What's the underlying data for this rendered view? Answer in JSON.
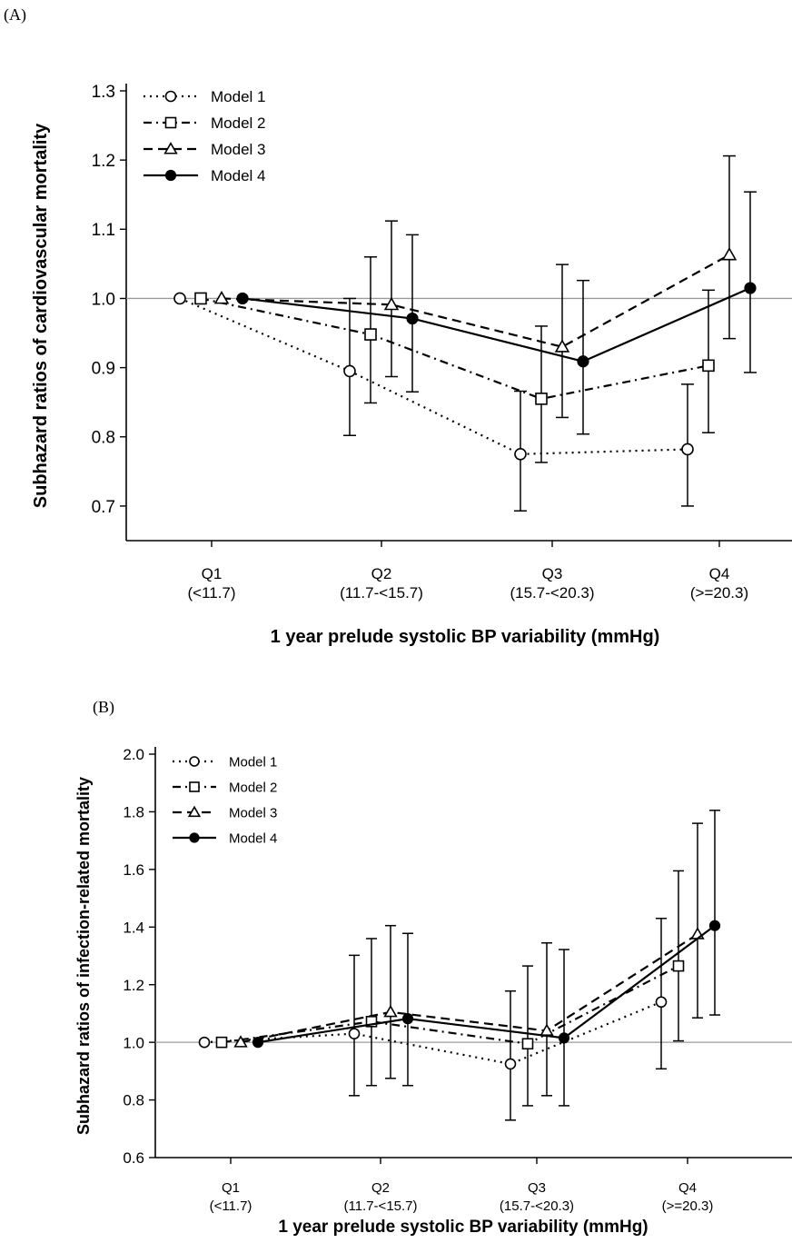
{
  "panels": [
    {
      "label": "(A)",
      "chart_data": {
        "type": "line",
        "ylabel": "Subhazard ratios of cardiovascular mortality",
        "xlabel": "1 year prelude systolic BP variability (mmHg)",
        "categories": [
          {
            "name": "Q1",
            "range": "(<11.7)"
          },
          {
            "name": "Q2",
            "range": "(11.7-<15.7)"
          },
          {
            "name": "Q3",
            "range": "(15.7-<20.3)"
          },
          {
            "name": "Q4",
            "range": "(>=20.3)"
          }
        ],
        "ylim": [
          0.65,
          1.3
        ],
        "yticks": [
          "0.7",
          "0.8",
          "0.9",
          "1.0",
          "1.1",
          "1.2",
          "1.3"
        ],
        "reference_line": 1.0,
        "legend_position": "top-left",
        "series": [
          {
            "name": "Model 1",
            "marker": "circle-open",
            "line": "dotted",
            "values": [
              1.0,
              0.895,
              0.775,
              0.782
            ],
            "lower": [
              null,
              0.802,
              0.693,
              0.7
            ],
            "upper": [
              null,
              1.0,
              0.866,
              0.876
            ]
          },
          {
            "name": "Model 2",
            "marker": "square-open",
            "line": "dash-dot",
            "values": [
              1.0,
              0.948,
              0.855,
              0.903
            ],
            "lower": [
              null,
              0.849,
              0.763,
              0.806
            ],
            "upper": [
              null,
              1.06,
              0.96,
              1.012
            ]
          },
          {
            "name": "Model 3",
            "marker": "triangle-open",
            "line": "dashed",
            "values": [
              1.0,
              0.991,
              0.93,
              1.063
            ],
            "lower": [
              null,
              0.887,
              0.828,
              0.942
            ],
            "upper": [
              null,
              1.112,
              1.049,
              1.206
            ]
          },
          {
            "name": "Model 4",
            "marker": "circle-filled",
            "line": "solid",
            "values": [
              1.0,
              0.971,
              0.909,
              1.015
            ],
            "lower": [
              null,
              0.865,
              0.804,
              0.893
            ],
            "upper": [
              null,
              1.092,
              1.026,
              1.154
            ]
          }
        ]
      }
    },
    {
      "label": "(B)",
      "chart_data": {
        "type": "line",
        "ylabel": "Subhazard ratios of infection-related mortality",
        "xlabel": "1 year prelude systolic BP variability (mmHg)",
        "categories": [
          {
            "name": "Q1",
            "range": "(<11.7)"
          },
          {
            "name": "Q2",
            "range": "(11.7-<15.7)"
          },
          {
            "name": "Q3",
            "range": "(15.7-<20.3)"
          },
          {
            "name": "Q4",
            "range": "(>=20.3)"
          }
        ],
        "ylim": [
          0.6,
          2.0
        ],
        "yticks": [
          "0.6",
          "0.8",
          "1.0",
          "1.2",
          "1.4",
          "1.6",
          "1.8",
          "2.0"
        ],
        "reference_line": 1.0,
        "legend_position": "top-left",
        "series": [
          {
            "name": "Model 1",
            "marker": "circle-open",
            "line": "dotted",
            "values": [
              1.0,
              1.03,
              0.925,
              1.14
            ],
            "lower": [
              null,
              0.815,
              0.73,
              0.908
            ],
            "upper": [
              null,
              1.302,
              1.178,
              1.43
            ]
          },
          {
            "name": "Model 2",
            "marker": "square-open",
            "line": "dash-dot",
            "values": [
              1.0,
              1.072,
              0.995,
              1.265
            ],
            "lower": [
              null,
              0.85,
              0.78,
              1.005
            ],
            "upper": [
              null,
              1.36,
              1.265,
              1.595
            ]
          },
          {
            "name": "Model 3",
            "marker": "triangle-open",
            "line": "dashed",
            "values": [
              1.0,
              1.105,
              1.04,
              1.375
            ],
            "lower": [
              null,
              0.875,
              0.815,
              1.085
            ],
            "upper": [
              null,
              1.405,
              1.345,
              1.76
            ]
          },
          {
            "name": "Model 4",
            "marker": "circle-filled",
            "line": "solid",
            "values": [
              1.0,
              1.082,
              1.015,
              1.405
            ],
            "lower": [
              null,
              0.85,
              0.78,
              1.095
            ],
            "upper": [
              null,
              1.378,
              1.322,
              1.805
            ]
          }
        ]
      }
    }
  ]
}
